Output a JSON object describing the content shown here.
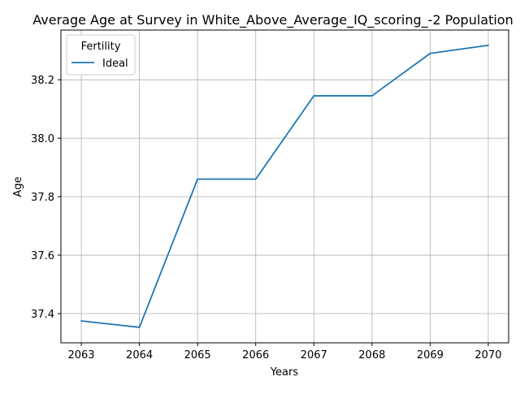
{
  "chart_data": {
    "type": "line",
    "title": "Average Age at Survey in White_Above_Average_IQ_scoring_-2 Population",
    "xlabel": "Years",
    "ylabel": "Age",
    "x": [
      2063,
      2064,
      2065,
      2066,
      2067,
      2068,
      2069,
      2070
    ],
    "xticks": [
      "2063",
      "2064",
      "2065",
      "2066",
      "2067",
      "2068",
      "2069",
      "2070"
    ],
    "yticks": [
      "37.4",
      "37.6",
      "37.8",
      "38.0",
      "38.2"
    ],
    "ylim": [
      37.3,
      38.37
    ],
    "grid": true,
    "legend": {
      "title": "Fertility",
      "placement": "upper-left"
    },
    "series": [
      {
        "name": "Ideal",
        "color": "#1f77b4",
        "values": [
          37.375,
          37.353,
          37.86,
          37.86,
          38.145,
          38.145,
          38.29,
          38.318
        ]
      }
    ]
  }
}
